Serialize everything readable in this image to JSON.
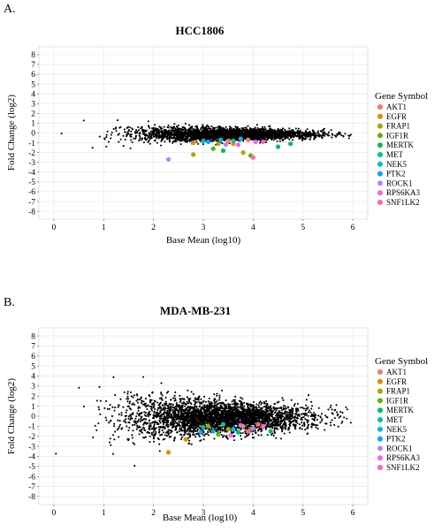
{
  "panels": [
    {
      "letter": "A.",
      "chart_data": {
        "type": "scatter",
        "title": "HCC1806",
        "xlabel": "Base Mean (log10)",
        "ylabel": "Fold Change (log2)",
        "xlim": [
          -0.3,
          6.3
        ],
        "ylim": [
          -8.8,
          8.8
        ],
        "x_ticks": [
          "0",
          "1",
          "2",
          "3",
          "4",
          "5",
          "6"
        ],
        "y_ticks": [
          "8",
          "7",
          "6",
          "5",
          "4",
          "3",
          "2",
          "1",
          "0",
          "-1",
          "-2",
          "-3",
          "-4",
          "-5",
          "-6",
          "-7",
          "-8"
        ],
        "grid": true,
        "background_points": {
          "count": 3200,
          "center_x": 3.45,
          "spread_x": 0.85,
          "y_spread_factor": 0.45
        },
        "legend": {
          "title": "Gene Symbol",
          "position": "right",
          "entries": [
            "AKT1",
            "EGFR",
            "FRAP1",
            "IGF1R",
            "MERTK",
            "MET",
            "NEK5",
            "PTK2",
            "ROCK1",
            "RPS6KA3",
            "SNF1LK2"
          ]
        },
        "highlighted": [
          {
            "gene": "AKT1",
            "points": [
              [
                3.5,
                -0.8
              ],
              [
                3.9,
                -0.7
              ]
            ]
          },
          {
            "gene": "EGFR",
            "points": [
              [
                2.8,
                -1.0
              ],
              [
                3.6,
                -1.1
              ]
            ]
          },
          {
            "gene": "FRAP1",
            "points": [
              [
                3.3,
                -1.1
              ],
              [
                3.8,
                -2.0
              ],
              [
                2.8,
                -2.2
              ]
            ]
          },
          {
            "gene": "IGF1R",
            "points": [
              [
                3.2,
                -1.6
              ],
              [
                3.95,
                -2.3
              ]
            ]
          },
          {
            "gene": "MERTK",
            "points": [
              [
                4.5,
                -1.4
              ],
              [
                4.75,
                -1.1
              ],
              [
                3.4,
                -1.8
              ]
            ]
          },
          {
            "gene": "MET",
            "points": [
              [
                3.6,
                -0.8
              ],
              [
                3.0,
                -0.8
              ]
            ]
          },
          {
            "gene": "NEK5",
            "points": [
              [
                3.35,
                -0.7
              ],
              [
                3.75,
                -0.6
              ]
            ]
          },
          {
            "gene": "PTK2",
            "points": [
              [
                3.1,
                -0.9
              ]
            ]
          },
          {
            "gene": "ROCK1",
            "points": [
              [
                2.3,
                -2.7
              ],
              [
                3.45,
                -1.2
              ]
            ]
          },
          {
            "gene": "RPS6KA3",
            "points": [
              [
                4.05,
                -0.9
              ],
              [
                3.7,
                -1.2
              ]
            ]
          },
          {
            "gene": "SNF1LK2",
            "points": [
              [
                4.0,
                -2.5
              ],
              [
                4.2,
                -0.9
              ]
            ]
          }
        ]
      }
    },
    {
      "letter": "B.",
      "chart_data": {
        "type": "scatter",
        "title": "MDA-MB-231",
        "xlabel": "Base Mean (log10)",
        "ylabel": "Fold Change (log2)",
        "xlim": [
          -0.3,
          6.3
        ],
        "ylim": [
          -8.8,
          8.8
        ],
        "x_ticks": [
          "0",
          "1",
          "2",
          "3",
          "4",
          "5",
          "6"
        ],
        "y_ticks": [
          "8",
          "7",
          "6",
          "5",
          "4",
          "3",
          "2",
          "1",
          "0",
          "-1",
          "-2",
          "-3",
          "-4",
          "-5",
          "-6",
          "-7",
          "-8"
        ],
        "grid": true,
        "background_points": {
          "count": 3500,
          "center_x": 3.35,
          "spread_x": 0.9,
          "y_spread_factor": 1.15
        },
        "legend": {
          "title": "Gene Symbol",
          "position": "right",
          "entries": [
            "AKT1",
            "EGFR",
            "FRAP1",
            "IGF1R",
            "MERTK",
            "MET",
            "NEK5",
            "PTK2",
            "ROCK1",
            "RPS6KA3",
            "SNF1LK2"
          ]
        },
        "highlighted": [
          {
            "gene": "AKT1",
            "points": [
              [
                3.8,
                -1.0
              ],
              [
                4.1,
                -0.8
              ]
            ]
          },
          {
            "gene": "EGFR",
            "points": [
              [
                2.3,
                -3.6
              ],
              [
                2.65,
                -2.3
              ]
            ]
          },
          {
            "gene": "FRAP1",
            "points": [
              [
                3.5,
                -1.3
              ],
              [
                3.1,
                -1.0
              ]
            ]
          },
          {
            "gene": "IGF1R",
            "points": [
              [
                3.3,
                -1.8
              ],
              [
                3.95,
                -1.3
              ]
            ]
          },
          {
            "gene": "MERTK",
            "points": [
              [
                4.35,
                -1.5
              ],
              [
                3.7,
                -1.6
              ]
            ]
          },
          {
            "gene": "MET",
            "points": [
              [
                3.4,
                -0.8
              ],
              [
                3.0,
                -1.1
              ]
            ]
          },
          {
            "gene": "NEK5",
            "points": [
              [
                3.6,
                -1.3
              ],
              [
                3.2,
                -1.5
              ]
            ]
          },
          {
            "gene": "PTK2",
            "points": [
              [
                2.95,
                -1.6
              ]
            ]
          },
          {
            "gene": "ROCK1",
            "points": [
              [
                3.75,
                -0.9
              ],
              [
                4.0,
                -1.2
              ]
            ]
          },
          {
            "gene": "RPS6KA3",
            "points": [
              [
                3.55,
                -1.9
              ],
              [
                4.2,
                -1.0
              ]
            ]
          },
          {
            "gene": "SNF1LK2",
            "points": [
              [
                3.9,
                -1.5
              ]
            ]
          }
        ]
      }
    }
  ],
  "colors": {
    "AKT1": "#F8766D",
    "EGFR": "#DB8E00",
    "FRAP1": "#AEA200",
    "IGF1R": "#64B200",
    "MERTK": "#00BD5C",
    "MET": "#00C1A7",
    "NEK5": "#00BADE",
    "PTK2": "#00A6FF",
    "ROCK1": "#B385FF",
    "RPS6KA3": "#EF67EB",
    "SNF1LK2": "#FF63B6",
    "point": "#000000",
    "grid": "#e4e4e4",
    "panel_bg": "#ffffff",
    "axis": "#555555"
  }
}
